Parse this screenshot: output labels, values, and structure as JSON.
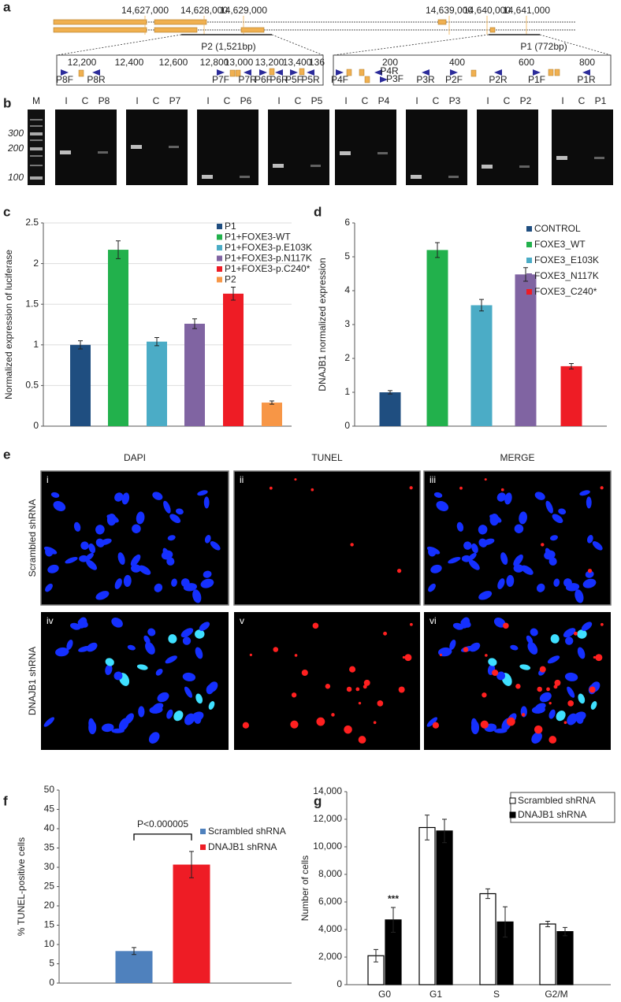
{
  "panel_labels": [
    "a",
    "b",
    "c",
    "d",
    "e",
    "f",
    "g"
  ],
  "genomic_map": {
    "coordinates": [
      "14,627,000",
      "14,628,000",
      "14,629,000",
      "14,639,000",
      "14,640,000",
      "14,641,000"
    ],
    "regions": [
      "P2 (1,521bp)",
      "P1 (772bp)"
    ],
    "left_scale": [
      "12,200",
      "12,400",
      "12,600",
      "12,800",
      "13,000",
      "13,200",
      "13,400",
      "136"
    ],
    "left_primers": [
      "P8F",
      "P8R",
      "P7F",
      "P7R",
      "P6F",
      "P6R",
      "P5F",
      "P5R"
    ],
    "right_scale": [
      "200",
      "400",
      "600",
      "800"
    ],
    "right_primers": [
      "P4F",
      "P4R",
      "P3F",
      "P3R",
      "P2F",
      "P2R",
      "P1F",
      "P1R"
    ]
  },
  "gel": {
    "marker_lane": "M",
    "marker_sizes": [
      "300",
      "200",
      "100"
    ],
    "lanes": [
      [
        "I",
        "C",
        "P8"
      ],
      [
        "I",
        "C",
        "P7"
      ],
      [
        "I",
        "C",
        "P6"
      ],
      [
        "I",
        "C",
        "P5"
      ],
      [
        "I",
        "C",
        "P4"
      ],
      [
        "I",
        "C",
        "P3"
      ],
      [
        "I",
        "C",
        "P2"
      ],
      [
        "I",
        "C",
        "P1"
      ]
    ]
  },
  "microscopy": {
    "columns": [
      "DAPI",
      "TUNEL",
      "MERGE"
    ],
    "rows": [
      "Scrambled shRNA",
      "DNAJB1 shRNA"
    ],
    "panels": [
      "i",
      "ii",
      "iii",
      "iv",
      "v",
      "vi"
    ]
  },
  "chart_data": [
    {
      "type": "bar",
      "y_label": "Normalized expression of luciferase",
      "grid": true,
      "ylim": [
        0,
        2.5
      ],
      "yticks": [
        0,
        0.5,
        1,
        1.5,
        2,
        2.5
      ],
      "series": [
        {
          "name": "P1",
          "color": "#1f4e80",
          "values": [
            1.0
          ],
          "errors": [
            0.05
          ]
        },
        {
          "name": "P1+FOXE3-WT",
          "color": "#22b14c",
          "values": [
            2.17
          ],
          "errors": [
            0.11
          ]
        },
        {
          "name": "P1+FOXE3-p.E103K",
          "color": "#4bacc6",
          "values": [
            1.04
          ],
          "errors": [
            0.05
          ]
        },
        {
          "name": "P1+FOXE3-p.N117K",
          "color": "#8064a2",
          "values": [
            1.26
          ],
          "errors": [
            0.06
          ]
        },
        {
          "name": "P1+FOXE3-p.C240*",
          "color": "#ee1c25",
          "values": [
            1.63
          ],
          "errors": [
            0.08
          ]
        },
        {
          "name": "P2",
          "color": "#f79646",
          "values": [
            0.29
          ],
          "errors": [
            0.02
          ]
        }
      ]
    },
    {
      "type": "bar",
      "y_label": "DNAJB1 normalized expression",
      "grid": false,
      "ylim": [
        0,
        6
      ],
      "yticks": [
        0,
        1,
        2,
        3,
        4,
        5,
        6
      ],
      "series": [
        {
          "name": "CONTROL",
          "color": "#1f4e80",
          "values": [
            1.0
          ],
          "errors": [
            0.05
          ]
        },
        {
          "name": "FOXE3_WT",
          "color": "#22b14c",
          "values": [
            5.2
          ],
          "errors": [
            0.22
          ]
        },
        {
          "name": "FOXE3_E103K",
          "color": "#4bacc6",
          "values": [
            3.57
          ],
          "errors": [
            0.17
          ]
        },
        {
          "name": "FOXE3_N117K",
          "color": "#8064a2",
          "values": [
            4.48
          ],
          "errors": [
            0.2
          ]
        },
        {
          "name": "FOXE3_C240*",
          "color": "#ee1c25",
          "values": [
            1.77
          ],
          "errors": [
            0.08
          ]
        }
      ]
    },
    {
      "type": "bar",
      "y_label": "% TUNEL-positive cells",
      "grid": false,
      "ylim": [
        0,
        50
      ],
      "yticks": [
        0,
        5,
        10,
        15,
        20,
        25,
        30,
        35,
        40,
        45,
        50
      ],
      "annotation": "P<0.000005",
      "series": [
        {
          "name": "Scrambled shRNA",
          "color": "#4f81bd",
          "values": [
            8.3
          ],
          "errors": [
            0.9
          ]
        },
        {
          "name": "DNAJB1 shRNA",
          "color": "#ee1c25",
          "values": [
            30.7
          ],
          "errors": [
            3.4
          ]
        }
      ]
    },
    {
      "type": "bar",
      "y_label": "Number of cells",
      "grid": false,
      "ylim": [
        0,
        14000
      ],
      "yticks": [
        0,
        {
          "value": 2000,
          "label": "2,000"
        },
        {
          "value": 4000,
          "label": "4,000"
        },
        {
          "value": 6000,
          "label": "6,000"
        },
        {
          "value": 8000,
          "label": "8,000"
        },
        {
          "value": 10000,
          "label": "10,000"
        },
        {
          "value": 12000,
          "label": "12,000"
        },
        {
          "value": 14000,
          "label": "14,000"
        }
      ],
      "categories": [
        "G0",
        "G1",
        "S",
        "G2/M"
      ],
      "annotation": "***",
      "series": [
        {
          "name": "Scrambled shRNA",
          "color": "#ffffff",
          "values": [
            2100,
            11400,
            6600,
            4400
          ],
          "errors": [
            450,
            900,
            350,
            200
          ]
        },
        {
          "name": "DNAJB1 shRNA",
          "color": "#000000",
          "values": [
            4700,
            11150,
            4550,
            3850
          ],
          "errors": [
            900,
            850,
            1100,
            300
          ]
        }
      ]
    }
  ]
}
